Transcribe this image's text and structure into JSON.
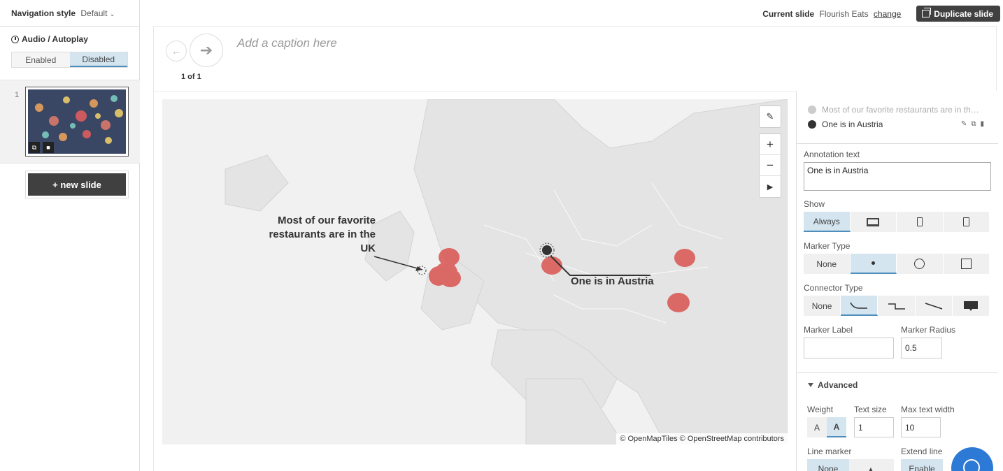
{
  "sidebar": {
    "navigation_style_label": "Navigation style",
    "navigation_style_value": "Default",
    "audio_label": "Audio / Autoplay",
    "toggle": {
      "enabled": "Enabled",
      "disabled": "Disabled",
      "selected": "Disabled"
    },
    "slides": [
      {
        "number": "1"
      }
    ],
    "new_slide_label": "+ new slide"
  },
  "topbar": {
    "current_slide_label": "Current slide",
    "current_slide_name": "Flourish Eats",
    "change_label": "change",
    "duplicate_label": "Duplicate slide"
  },
  "story": {
    "caption_placeholder": "Add a caption here",
    "counter": "1 of 1"
  },
  "map": {
    "attribution": "© OpenMapTiles © OpenStreetMap contributors",
    "annotations": [
      {
        "text": "Most of our favorite restaurants are in the UK"
      },
      {
        "text": "One is in Austria"
      }
    ],
    "marker_color": "#d9534f"
  },
  "panel": {
    "annotation_list": [
      {
        "text": "Most of our favorite restaurants are in the UK",
        "active": false
      },
      {
        "text": "One is in Austria",
        "active": true
      }
    ],
    "annotation_text_label": "Annotation text",
    "annotation_text_value": "One is in Austria",
    "show_label": "Show",
    "show_options": {
      "always": "Always",
      "desktop": "desktop-icon",
      "mobile": "mobile-icon",
      "both": "both-icon"
    },
    "marker_type_label": "Marker Type",
    "marker_type_none": "None",
    "connector_type_label": "Connector Type",
    "connector_type_none": "None",
    "marker_label_label": "Marker Label",
    "marker_label_value": "",
    "marker_radius_label": "Marker Radius",
    "marker_radius_value": "0.5",
    "advanced_label": "Advanced",
    "weight_label": "Weight",
    "weight_normal": "A",
    "weight_bold": "A",
    "text_size_label": "Text size",
    "text_size_value": "1",
    "max_text_width_label": "Max text width",
    "max_text_width_value": "10",
    "line_marker_label": "Line marker",
    "line_marker_none": "None",
    "extend_line_label": "Extend line",
    "extend_line_value": "Enable"
  },
  "colors": {
    "accent": "#4d8ebc",
    "dark_button": "#404040",
    "help": "#2d7ad6"
  }
}
